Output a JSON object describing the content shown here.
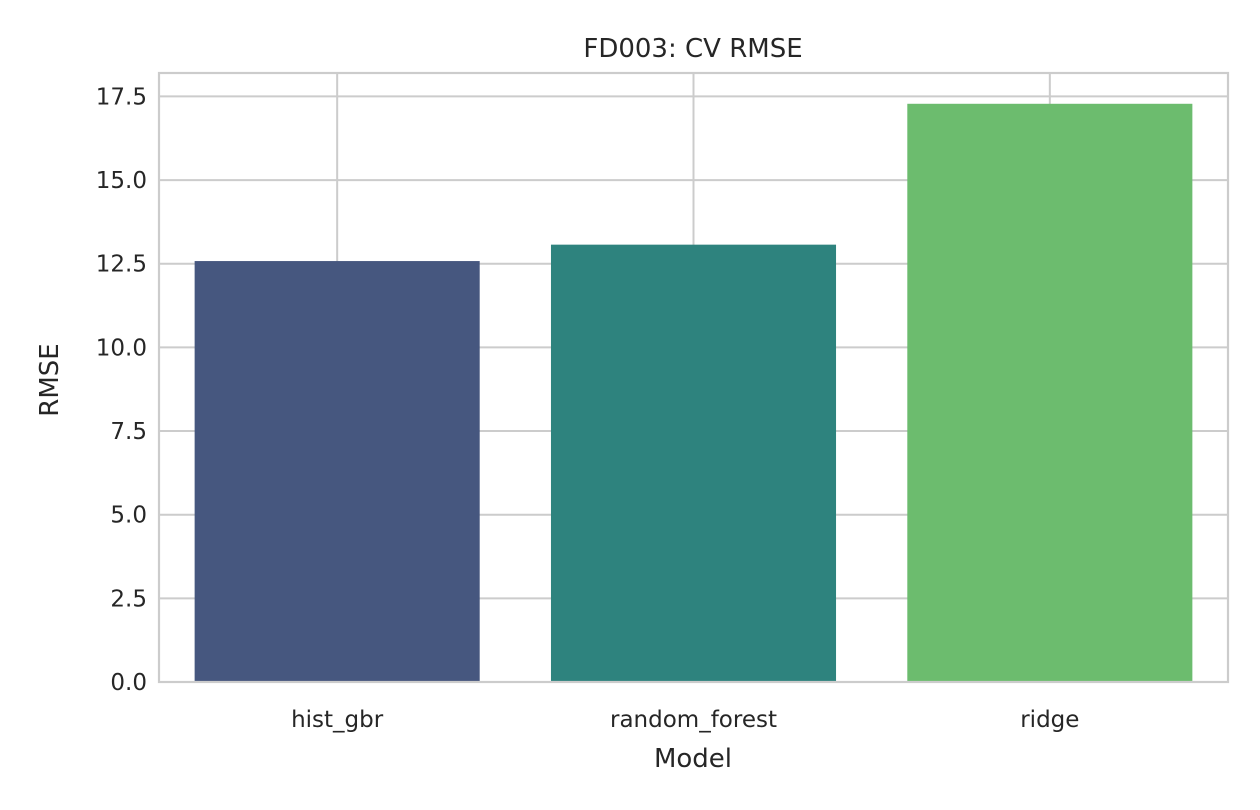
{
  "chart_data": {
    "type": "bar",
    "title": "FD003: CV RMSE",
    "xlabel": "Model",
    "ylabel": "RMSE",
    "categories": [
      "hist_gbr",
      "random_forest",
      "ridge"
    ],
    "values": [
      12.58,
      13.07,
      17.28
    ],
    "colors": [
      "#46577f",
      "#2e837e",
      "#6cbc6e"
    ],
    "ylim": [
      0,
      18.2
    ],
    "yticks": [
      0.0,
      2.5,
      5.0,
      7.5,
      10.0,
      12.5,
      15.0,
      17.5
    ],
    "ytick_labels": [
      "0.0",
      "2.5",
      "5.0",
      "7.5",
      "10.0",
      "12.5",
      "15.0",
      "17.5"
    ],
    "grid": true,
    "legend": "none"
  }
}
